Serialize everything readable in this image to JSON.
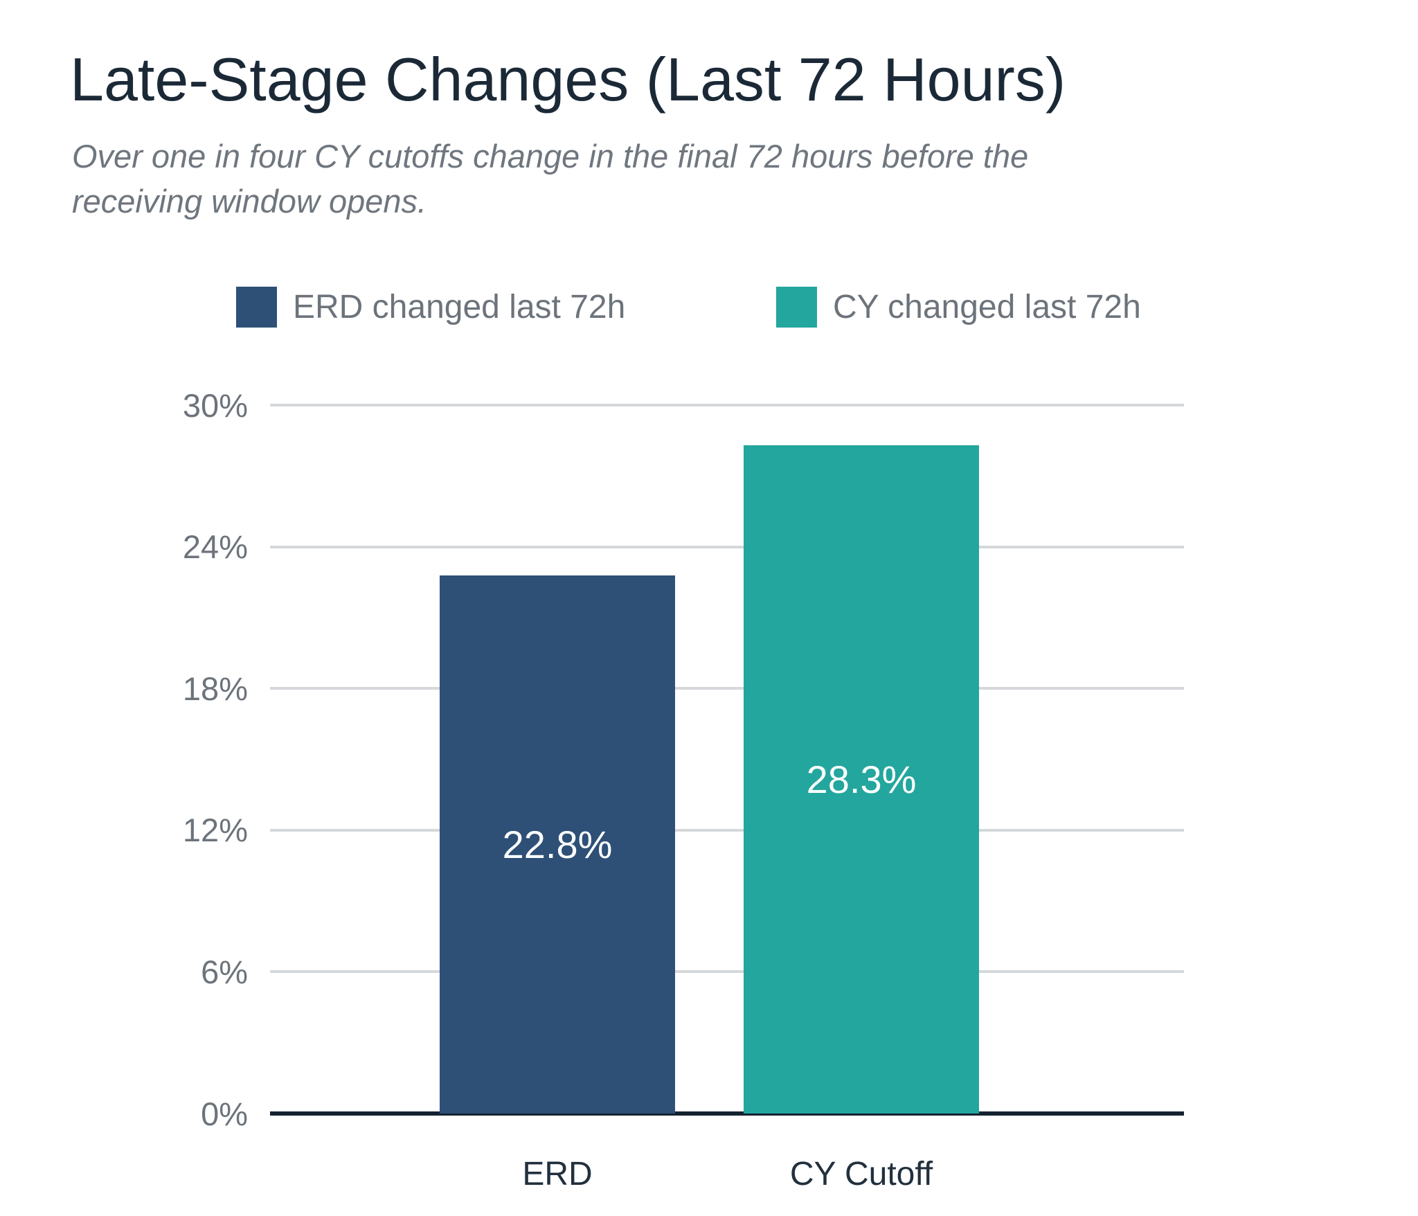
{
  "title": "Late-Stage Changes (Last 72 Hours)",
  "subtitle": "Over one in four CY cutoffs change in the final 72 hours before the receiving window opens.",
  "legend": [
    {
      "label": "ERD changed last 72h",
      "color": "#2e5077"
    },
    {
      "label": "CY changed last 72h",
      "color": "#23a69e"
    }
  ],
  "chart_data": {
    "type": "bar",
    "title": "Late-Stage Changes (Last 72 Hours)",
    "subtitle": "Over one in four CY cutoffs change in the final 72 hours before the receiving window opens.",
    "categories": [
      "ERD",
      "CY Cutoff"
    ],
    "values": [
      22.8,
      28.3
    ],
    "value_labels": [
      "22.8%",
      "28.3%"
    ],
    "bar_colors": [
      "#2e5077",
      "#23a69e"
    ],
    "xlabel": "",
    "ylabel": "",
    "ylim": [
      0,
      30
    ],
    "yticks": [
      0,
      6,
      12,
      18,
      24,
      30
    ],
    "ytick_labels": [
      "0%",
      "6%",
      "12%",
      "18%",
      "24%",
      "30%"
    ],
    "grid": "horizontal",
    "gridline_color": "#d5d8db",
    "axis_line_color": "#152230",
    "legend_position": "top",
    "value_label_position": "inside-center",
    "value_label_color": "#ffffff"
  }
}
